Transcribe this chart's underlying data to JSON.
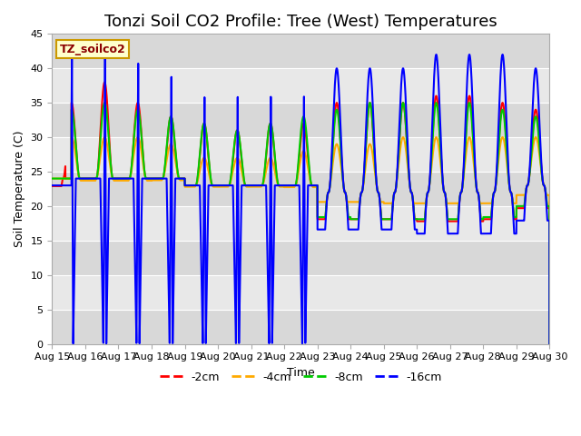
{
  "title": "Tonzi Soil CO2 Profile: Tree (West) Temperatures",
  "xlabel": "Time",
  "ylabel": "Soil Temperature (C)",
  "ylim": [
    0,
    45
  ],
  "xlim_days": 15,
  "x_tick_labels": [
    "Aug 15",
    "Aug 16",
    "Aug 17",
    "Aug 18",
    "Aug 19",
    "Aug 20",
    "Aug 21",
    "Aug 22",
    "Aug 23",
    "Aug 24",
    "Aug 25",
    "Aug 26",
    "Aug 27",
    "Aug 28",
    "Aug 29",
    "Aug 30"
  ],
  "legend_label": "TZ_soilco2",
  "series_labels": [
    "-2cm",
    "-4cm",
    "-8cm",
    "-16cm"
  ],
  "series_colors": [
    "#ff0000",
    "#ffaa00",
    "#00cc00",
    "#0000ff"
  ],
  "background_color": "#ffffff",
  "plot_bg_bands": [
    "#d8d8d8",
    "#e8e8e8"
  ],
  "grid_color": "#ffffff",
  "title_fontsize": 13,
  "axis_label_fontsize": 9,
  "tick_fontsize": 8,
  "legend_fontsize": 9,
  "line_width": 1.5,
  "y_ticks": [
    0,
    5,
    10,
    15,
    20,
    25,
    30,
    35,
    40,
    45
  ],
  "day_params": [
    {
      "base": 24.0,
      "peak2": 35,
      "peak4": 30,
      "peak8": 34,
      "peak16": 42,
      "blue_anom": true,
      "start_hour": 14
    },
    {
      "base": 24.0,
      "peak2": 38,
      "peak4": 30,
      "peak8": 35,
      "peak16": 42,
      "blue_anom": true,
      "start_hour": 0
    },
    {
      "base": 24.0,
      "peak2": 35,
      "peak4": 30,
      "peak8": 34,
      "peak16": 41,
      "blue_anom": true,
      "start_hour": 0
    },
    {
      "base": 24.0,
      "peak2": 33,
      "peak4": 29,
      "peak8": 33,
      "peak16": 39,
      "blue_anom": true,
      "start_hour": 0
    },
    {
      "base": 23.0,
      "peak2": 32,
      "peak4": 27,
      "peak8": 32,
      "peak16": 36,
      "blue_anom": true,
      "start_hour": 0
    },
    {
      "base": 23.0,
      "peak2": 31,
      "peak4": 27,
      "peak8": 31,
      "peak16": 36,
      "blue_anom": true,
      "start_hour": 0
    },
    {
      "base": 23.0,
      "peak2": 32,
      "peak4": 27,
      "peak8": 32,
      "peak16": 36,
      "blue_anom": true,
      "start_hour": 0
    },
    {
      "base": 23.0,
      "peak2": 32,
      "peak4": 28,
      "peak8": 33,
      "peak16": 36,
      "blue_anom": true,
      "start_hour": 0
    },
    {
      "base": 22.0,
      "peak2": 35,
      "peak4": 29,
      "peak8": 34,
      "peak16": 40,
      "blue_anom": false,
      "start_hour": 0
    },
    {
      "base": 22.0,
      "peak2": 35,
      "peak4": 29,
      "peak8": 35,
      "peak16": 40,
      "blue_anom": false,
      "start_hour": 0
    },
    {
      "base": 22.0,
      "peak2": 35,
      "peak4": 30,
      "peak8": 35,
      "peak16": 40,
      "blue_anom": false,
      "start_hour": 0
    },
    {
      "base": 22.0,
      "peak2": 36,
      "peak4": 30,
      "peak8": 35,
      "peak16": 42,
      "blue_anom": false,
      "start_hour": 0
    },
    {
      "base": 22.0,
      "peak2": 36,
      "peak4": 30,
      "peak8": 35,
      "peak16": 42,
      "blue_anom": false,
      "start_hour": 0
    },
    {
      "base": 22.0,
      "peak2": 35,
      "peak4": 30,
      "peak8": 34,
      "peak16": 42,
      "blue_anom": false,
      "start_hour": 0
    },
    {
      "base": 23.0,
      "peak2": 34,
      "peak4": 30,
      "peak8": 33,
      "peak16": 40,
      "blue_anom": false,
      "start_hour": 0
    }
  ]
}
